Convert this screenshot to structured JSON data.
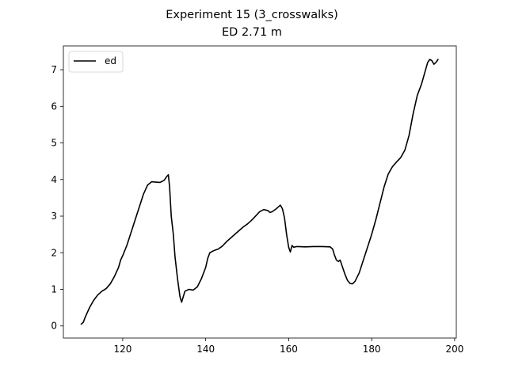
{
  "chart_data": {
    "type": "line",
    "title": "Experiment 15 (3_crosswalks)",
    "subtitle": "ED 2.71 m",
    "xlabel": "",
    "ylabel": "",
    "xlim": [
      105.7,
      200.4
    ],
    "ylim": [
      -0.33,
      7.65
    ],
    "x_ticks": [
      120,
      140,
      160,
      180,
      200
    ],
    "y_ticks": [
      0,
      1,
      2,
      3,
      4,
      5,
      6,
      7
    ],
    "grid": false,
    "legend_position": "top-left",
    "series": [
      {
        "name": "ed",
        "color": "#000000",
        "points": [
          [
            110.0,
            0.05
          ],
          [
            110.5,
            0.1
          ],
          [
            111.0,
            0.25
          ],
          [
            112.0,
            0.5
          ],
          [
            113.0,
            0.7
          ],
          [
            114.0,
            0.85
          ],
          [
            115.0,
            0.95
          ],
          [
            116.0,
            1.02
          ],
          [
            117.0,
            1.15
          ],
          [
            118.0,
            1.35
          ],
          [
            119.0,
            1.6
          ],
          [
            119.5,
            1.8
          ],
          [
            120.0,
            1.92
          ],
          [
            121.0,
            2.2
          ],
          [
            122.0,
            2.55
          ],
          [
            123.0,
            2.9
          ],
          [
            124.0,
            3.25
          ],
          [
            125.0,
            3.6
          ],
          [
            126.0,
            3.85
          ],
          [
            127.0,
            3.94
          ],
          [
            128.0,
            3.93
          ],
          [
            129.0,
            3.92
          ],
          [
            130.0,
            3.98
          ],
          [
            130.6,
            4.08
          ],
          [
            131.0,
            4.13
          ],
          [
            131.3,
            3.8
          ],
          [
            131.7,
            3.0
          ],
          [
            132.2,
            2.5
          ],
          [
            132.6,
            1.9
          ],
          [
            133.2,
            1.3
          ],
          [
            133.8,
            0.8
          ],
          [
            134.2,
            0.65
          ],
          [
            134.6,
            0.8
          ],
          [
            135.0,
            0.95
          ],
          [
            136.0,
            1.0
          ],
          [
            137.0,
            0.98
          ],
          [
            138.0,
            1.07
          ],
          [
            139.0,
            1.3
          ],
          [
            140.0,
            1.6
          ],
          [
            140.5,
            1.85
          ],
          [
            141.0,
            2.0
          ],
          [
            142.0,
            2.06
          ],
          [
            143.0,
            2.1
          ],
          [
            144.0,
            2.18
          ],
          [
            145.0,
            2.3
          ],
          [
            146.0,
            2.4
          ],
          [
            147.0,
            2.5
          ],
          [
            148.0,
            2.6
          ],
          [
            149.0,
            2.7
          ],
          [
            150.0,
            2.78
          ],
          [
            151.0,
            2.88
          ],
          [
            152.0,
            3.0
          ],
          [
            153.0,
            3.12
          ],
          [
            154.0,
            3.18
          ],
          [
            155.0,
            3.15
          ],
          [
            155.5,
            3.1
          ],
          [
            156.0,
            3.12
          ],
          [
            157.0,
            3.2
          ],
          [
            157.5,
            3.25
          ],
          [
            158.0,
            3.3
          ],
          [
            158.5,
            3.2
          ],
          [
            159.0,
            2.95
          ],
          [
            159.5,
            2.5
          ],
          [
            160.0,
            2.15
          ],
          [
            160.4,
            2.02
          ],
          [
            160.8,
            2.2
          ],
          [
            161.2,
            2.15
          ],
          [
            162.0,
            2.17
          ],
          [
            164.0,
            2.16
          ],
          [
            166.0,
            2.17
          ],
          [
            168.0,
            2.17
          ],
          [
            170.0,
            2.16
          ],
          [
            170.6,
            2.1
          ],
          [
            171.0,
            1.95
          ],
          [
            171.5,
            1.8
          ],
          [
            172.0,
            1.76
          ],
          [
            172.4,
            1.8
          ],
          [
            173.0,
            1.6
          ],
          [
            173.6,
            1.4
          ],
          [
            174.2,
            1.24
          ],
          [
            174.8,
            1.16
          ],
          [
            175.4,
            1.15
          ],
          [
            176.0,
            1.22
          ],
          [
            177.0,
            1.45
          ],
          [
            178.0,
            1.8
          ],
          [
            179.0,
            2.15
          ],
          [
            180.0,
            2.5
          ],
          [
            181.0,
            2.9
          ],
          [
            182.0,
            3.35
          ],
          [
            183.0,
            3.8
          ],
          [
            184.0,
            4.15
          ],
          [
            185.0,
            4.35
          ],
          [
            186.0,
            4.48
          ],
          [
            187.0,
            4.6
          ],
          [
            188.0,
            4.8
          ],
          [
            189.0,
            5.2
          ],
          [
            190.0,
            5.8
          ],
          [
            191.0,
            6.3
          ],
          [
            192.0,
            6.6
          ],
          [
            193.0,
            7.0
          ],
          [
            193.5,
            7.2
          ],
          [
            194.0,
            7.28
          ],
          [
            194.5,
            7.25
          ],
          [
            195.0,
            7.15
          ],
          [
            195.5,
            7.2
          ],
          [
            196.0,
            7.28
          ]
        ]
      }
    ]
  }
}
